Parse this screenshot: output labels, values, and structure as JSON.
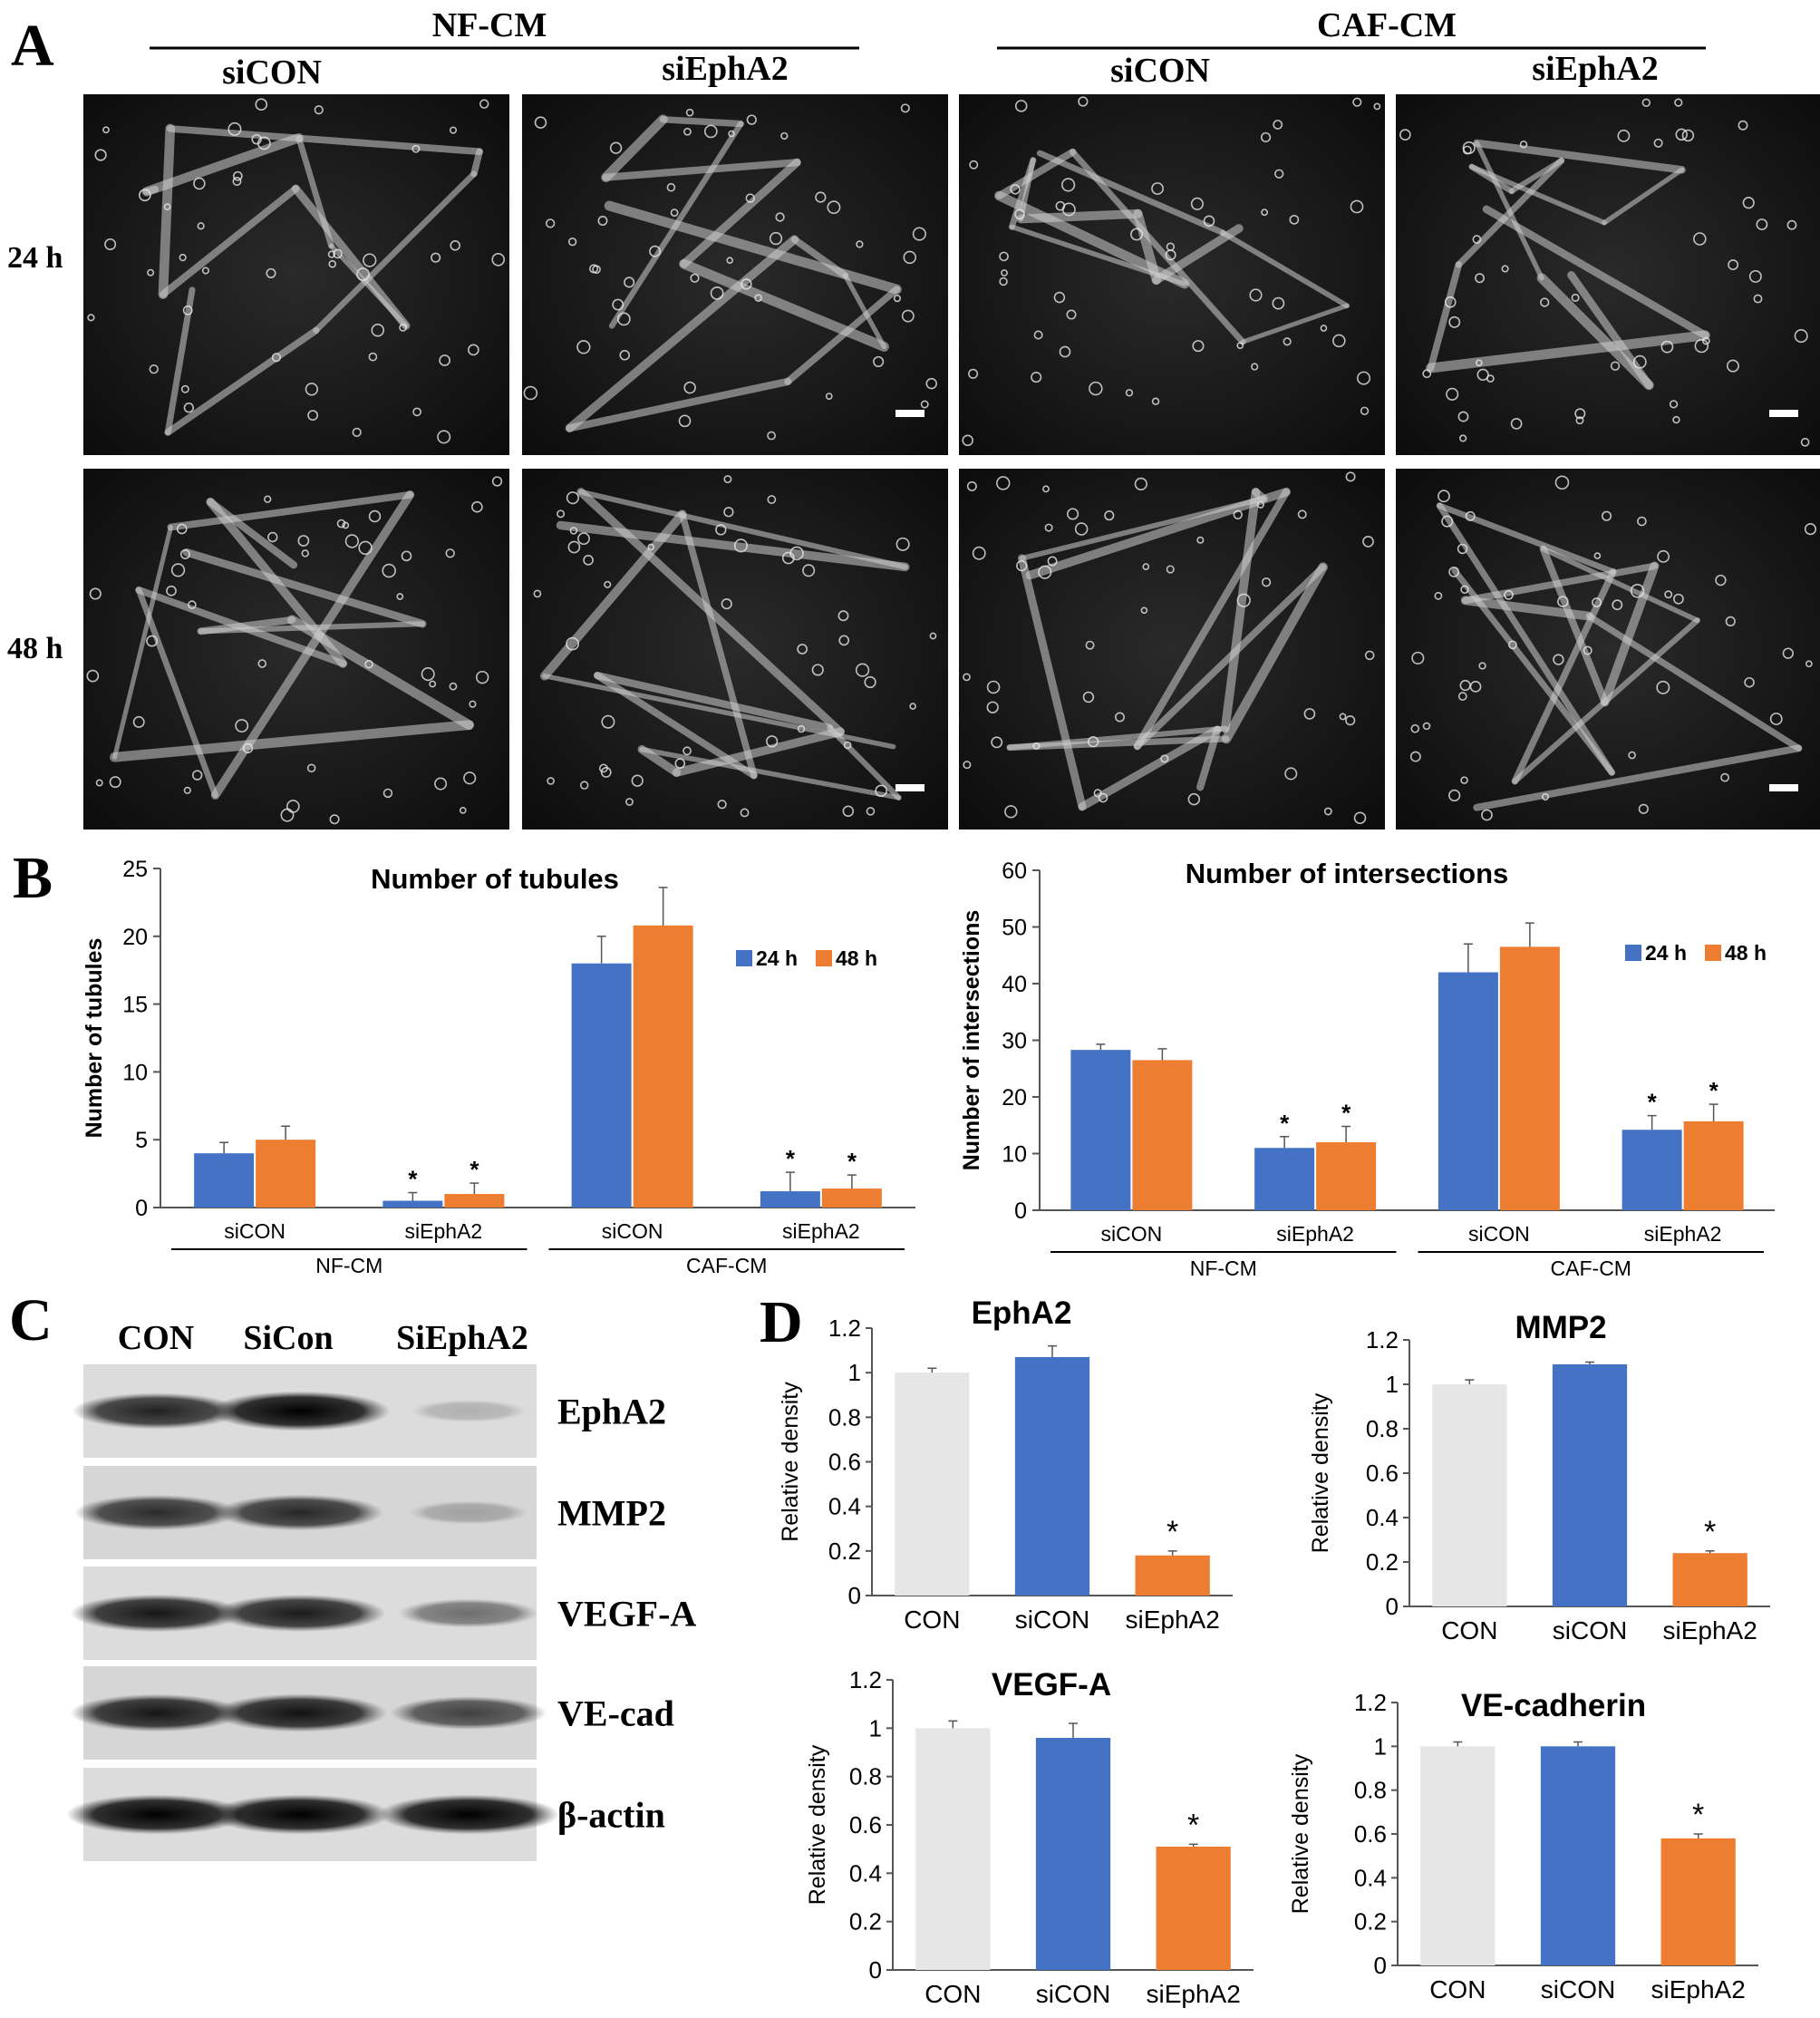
{
  "panel_a": {
    "letter": "A",
    "group_labels": [
      "NF-CM",
      "CAF-CM"
    ],
    "column_labels": [
      "siCON",
      "siEphA2",
      "siCON",
      "siEphA2"
    ],
    "row_labels": [
      "24 h",
      "48 h"
    ]
  },
  "panel_b": {
    "letter": "B"
  },
  "panel_c": {
    "letter": "C",
    "lane_labels": [
      "CON",
      "SiCon",
      "SiEphA2"
    ],
    "band_labels": [
      "EphA2",
      "MMP2",
      "VEGF-A",
      "VE-cad",
      "β-actin"
    ],
    "band_intensities": [
      [
        0.85,
        1.0,
        0.2
      ],
      [
        0.8,
        0.82,
        0.25
      ],
      [
        0.9,
        0.88,
        0.5
      ],
      [
        0.9,
        0.92,
        0.7
      ],
      [
        1.0,
        1.0,
        1.0
      ]
    ]
  },
  "panel_d": {
    "letter": "D"
  },
  "colors": {
    "blue": "#4472c4",
    "orange": "#ed7d31",
    "gray": "#e6e6e6",
    "axis": "#222222"
  },
  "chart_data": [
    {
      "id": "tubules",
      "type": "bar",
      "title": "Number of tubules",
      "xlabel": "",
      "ylabel": "Number of tubules",
      "ylim": [
        0,
        25
      ],
      "yticks": [
        0,
        5,
        10,
        15,
        20,
        25
      ],
      "categories": [
        "siCON",
        "siEphA2",
        "siCON",
        "siEphA2"
      ],
      "groups": [
        "NF-CM",
        "CAF-CM"
      ],
      "series": [
        {
          "name": "24 h",
          "color": "#4472c4",
          "values": [
            4.0,
            0.5,
            18.0,
            1.2
          ],
          "errors": [
            0.8,
            0.6,
            2.0,
            1.4
          ]
        },
        {
          "name": "48 h",
          "color": "#ed7d31",
          "values": [
            5.0,
            1.0,
            20.8,
            1.4
          ],
          "errors": [
            1.0,
            0.8,
            2.8,
            1.0
          ]
        }
      ],
      "significance": [
        "",
        "*",
        "",
        "*"
      ],
      "legend": "top-right"
    },
    {
      "id": "intersections",
      "type": "bar",
      "title": "Number of intersections",
      "xlabel": "",
      "ylabel": "Number of intersections",
      "ylim": [
        0,
        60
      ],
      "yticks": [
        0,
        10,
        20,
        30,
        40,
        50,
        60
      ],
      "categories": [
        "siCON",
        "siEphA2",
        "siCON",
        "siEphA2"
      ],
      "groups": [
        "NF-CM",
        "CAF-CM"
      ],
      "series": [
        {
          "name": "24 h",
          "color": "#4472c4",
          "values": [
            28.3,
            11.0,
            42.0,
            14.2
          ],
          "errors": [
            1.0,
            2.0,
            5.0,
            2.5
          ]
        },
        {
          "name": "48 h",
          "color": "#ed7d31",
          "values": [
            26.5,
            12.0,
            46.5,
            15.7
          ],
          "errors": [
            2.0,
            2.8,
            4.2,
            3.0
          ]
        }
      ],
      "significance": [
        "",
        "*",
        "",
        "*"
      ],
      "legend": "top-right"
    },
    {
      "id": "epha2",
      "type": "bar",
      "title": "EphA2",
      "ylabel": "Relative density",
      "ylim": [
        0,
        1.2
      ],
      "yticks": [
        0,
        0.2,
        0.4,
        0.6,
        0.8,
        1,
        1.2
      ],
      "categories": [
        "CON",
        "siCON",
        "siEphA2"
      ],
      "values": [
        1.0,
        1.07,
        0.18
      ],
      "errors": [
        0.02,
        0.05,
        0.02
      ],
      "bar_colors": [
        "#e6e6e6",
        "#4472c4",
        "#ed7d31"
      ],
      "significance": [
        "",
        "",
        "*"
      ]
    },
    {
      "id": "mmp2",
      "type": "bar",
      "title": "MMP2",
      "ylabel": "Relative density",
      "ylim": [
        0,
        1.2
      ],
      "yticks": [
        0,
        0.2,
        0.4,
        0.6,
        0.8,
        1,
        1.2
      ],
      "categories": [
        "CON",
        "siCON",
        "siEphA2"
      ],
      "values": [
        1.0,
        1.09,
        0.24
      ],
      "errors": [
        0.02,
        0.01,
        0.01
      ],
      "bar_colors": [
        "#e6e6e6",
        "#4472c4",
        "#ed7d31"
      ],
      "significance": [
        "",
        "",
        "*"
      ]
    },
    {
      "id": "vegfa",
      "type": "bar",
      "title": "VEGF-A",
      "ylabel": "Relative density",
      "ylim": [
        0,
        1.2
      ],
      "yticks": [
        0,
        0.2,
        0.4,
        0.6,
        0.8,
        1,
        1.2
      ],
      "categories": [
        "CON",
        "siCON",
        "siEphA2"
      ],
      "values": [
        1.0,
        0.96,
        0.51
      ],
      "errors": [
        0.03,
        0.06,
        0.01
      ],
      "bar_colors": [
        "#e6e6e6",
        "#4472c4",
        "#ed7d31"
      ],
      "significance": [
        "",
        "",
        "*"
      ]
    },
    {
      "id": "vecadherin",
      "type": "bar",
      "title": "VE-cadherin",
      "ylabel": "Relative density",
      "ylim": [
        0,
        1.2
      ],
      "yticks": [
        0,
        0.2,
        0.4,
        0.6,
        0.8,
        1,
        1.2
      ],
      "categories": [
        "CON",
        "siCON",
        "siEphA2"
      ],
      "values": [
        1.0,
        1.0,
        0.58
      ],
      "errors": [
        0.02,
        0.02,
        0.02
      ],
      "bar_colors": [
        "#e6e6e6",
        "#4472c4",
        "#ed7d31"
      ],
      "significance": [
        "",
        "",
        "*"
      ]
    }
  ]
}
